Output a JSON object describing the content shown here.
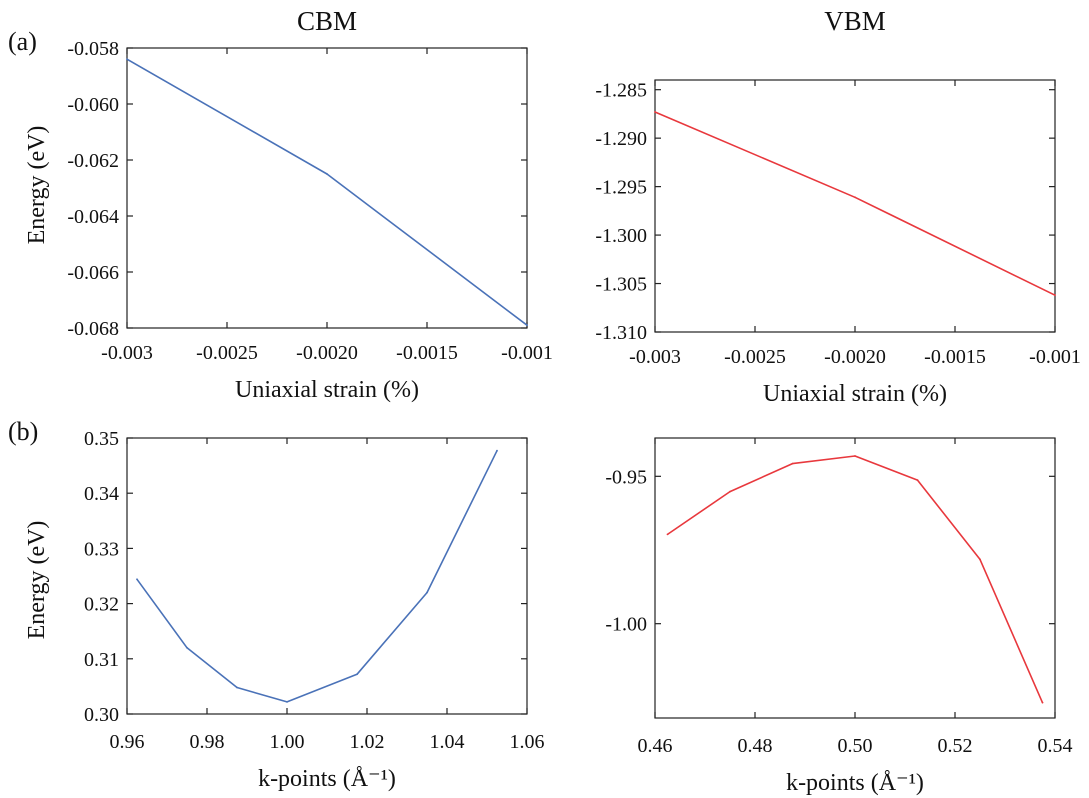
{
  "figure": {
    "panel_labels": [
      "(a)",
      "(b)"
    ],
    "column_titles": [
      "CBM",
      "VBM"
    ]
  },
  "chart_data": [
    {
      "type": "line",
      "panel": "a-left",
      "title": "CBM",
      "xlabel": "Uniaxial strain (%)",
      "ylabel": "Energy (eV)",
      "xlim": [
        -0.003,
        -0.001
      ],
      "ylim": [
        -0.068,
        -0.058
      ],
      "x_ticks": [
        -0.003,
        -0.0025,
        -0.002,
        -0.0015,
        -0.001
      ],
      "x_tick_labels": [
        "-0.003",
        "-0.0025",
        "-0.0020",
        "-0.0015",
        "-0.001"
      ],
      "y_ticks": [
        -0.058,
        -0.06,
        -0.062,
        -0.064,
        -0.066,
        -0.068
      ],
      "y_tick_labels": [
        "-0.058",
        "-0.060",
        "-0.062",
        "-0.064",
        "-0.066",
        "-0.068"
      ],
      "grid": false,
      "series": [
        {
          "color": "#4a72b8",
          "x": [
            -0.003,
            -0.002,
            -0.001
          ],
          "y": [
            -0.0584,
            -0.0625,
            -0.0679
          ]
        }
      ]
    },
    {
      "type": "line",
      "panel": "a-right",
      "title": "VBM",
      "xlabel": "Uniaxial strain (%)",
      "ylabel": "",
      "xlim": [
        -0.003,
        -0.001
      ],
      "ylim": [
        -1.31,
        -1.284
      ],
      "x_ticks": [
        -0.003,
        -0.0025,
        -0.002,
        -0.0015,
        -0.001
      ],
      "x_tick_labels": [
        "-0.003",
        "-0.0025",
        "-0.0020",
        "-0.0015",
        "-0.001"
      ],
      "y_ticks": [
        -1.285,
        -1.29,
        -1.295,
        -1.3,
        -1.305,
        -1.31
      ],
      "y_tick_labels": [
        "-1.285",
        "-1.290",
        "-1.295",
        "-1.300",
        "-1.305",
        "-1.310"
      ],
      "grid": false,
      "series": [
        {
          "color": "#e8383d",
          "x": [
            -0.003,
            -0.002,
            -0.001
          ],
          "y": [
            -1.2873,
            -1.2961,
            -1.3062
          ]
        }
      ]
    },
    {
      "type": "line",
      "panel": "b-left",
      "title": "",
      "xlabel": "k-points (Å⁻¹)",
      "ylabel": "Energy (eV)",
      "xlim": [
        0.96,
        1.06
      ],
      "ylim": [
        0.3,
        0.35
      ],
      "x_ticks": [
        0.96,
        0.98,
        1.0,
        1.02,
        1.04,
        1.06
      ],
      "x_tick_labels": [
        "0.96",
        "0.98",
        "1.00",
        "1.02",
        "1.04",
        "1.06"
      ],
      "y_ticks": [
        0.3,
        0.31,
        0.32,
        0.33,
        0.34,
        0.35
      ],
      "y_tick_labels": [
        "0.30",
        "0.31",
        "0.32",
        "0.33",
        "0.34",
        "0.35"
      ],
      "grid": false,
      "series": [
        {
          "color": "#4a72b8",
          "x": [
            0.9625,
            0.975,
            0.9875,
            1.0,
            1.0175,
            1.035,
            1.0525
          ],
          "y": [
            0.3244,
            0.312,
            0.3048,
            0.3022,
            0.3072,
            0.322,
            0.3477
          ]
        }
      ]
    },
    {
      "type": "line",
      "panel": "b-right",
      "title": "",
      "xlabel": "k-points (Å⁻¹)",
      "ylabel": "",
      "xlim": [
        0.46,
        0.54
      ],
      "ylim": [
        -1.032,
        -0.937
      ],
      "x_ticks": [
        0.46,
        0.48,
        0.5,
        0.52,
        0.54
      ],
      "x_tick_labels": [
        "0.46",
        "0.48",
        "0.50",
        "0.52",
        "0.54"
      ],
      "y_ticks": [
        -0.95,
        -1.0
      ],
      "y_tick_labels": [
        "-0.95",
        "-1.00"
      ],
      "grid": false,
      "series": [
        {
          "color": "#e8383d",
          "x": [
            0.4625,
            0.475,
            0.4875,
            0.5,
            0.5125,
            0.525,
            0.5375
          ],
          "y": [
            -0.9697,
            -0.9552,
            -0.9457,
            -0.9431,
            -0.9513,
            -0.9782,
            -1.0268
          ]
        }
      ]
    }
  ]
}
